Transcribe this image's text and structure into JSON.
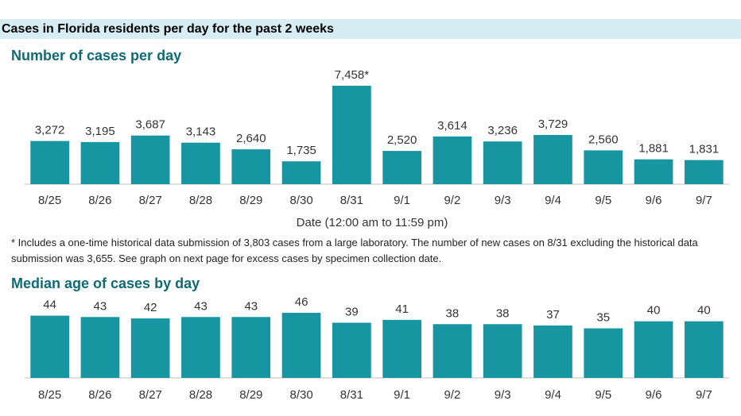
{
  "header": {
    "title": "Cases in Florida residents per day for the past 2 weeks"
  },
  "footnote": "* Includes a one-time historical data submission of 3,803 cases from a large laboratory. The number of new cases on 8/31 excluding the historical data submission was 3,655. See graph on next page for excess cases by specimen collection date.",
  "colors": {
    "bar": "#1795a0",
    "title": "#0e6a75",
    "header_bg": "#d6edf3"
  },
  "chart_data": [
    {
      "type": "bar",
      "title": "Number of cases per day",
      "xlabel": "Date (12:00 am to 11:59 pm)",
      "ylabel": "",
      "categories": [
        "8/25",
        "8/26",
        "8/27",
        "8/28",
        "8/29",
        "8/30",
        "8/31",
        "9/1",
        "9/2",
        "9/3",
        "9/4",
        "9/5",
        "9/6",
        "9/7"
      ],
      "values": [
        3272,
        3195,
        3687,
        3143,
        2640,
        1735,
        7458,
        2520,
        3614,
        3236,
        3729,
        2560,
        1881,
        1831
      ],
      "data_labels": [
        "3,272",
        "3,195",
        "3,687",
        "3,143",
        "2,640",
        "1,735",
        "7,458*",
        "2,520",
        "3,614",
        "3,236",
        "3,729",
        "2,560",
        "1,881",
        "1,831"
      ],
      "ylim": [
        0,
        7458
      ],
      "grid": false,
      "legend": "none"
    },
    {
      "type": "bar",
      "title": "Median age of cases by day",
      "xlabel": "",
      "ylabel": "",
      "categories": [
        "8/25",
        "8/26",
        "8/27",
        "8/28",
        "8/29",
        "8/30",
        "8/31",
        "9/1",
        "9/2",
        "9/3",
        "9/4",
        "9/5",
        "9/6",
        "9/7"
      ],
      "values": [
        44,
        43,
        42,
        43,
        43,
        46,
        39,
        41,
        38,
        38,
        37,
        35,
        40,
        40
      ],
      "data_labels": [
        "44",
        "43",
        "42",
        "43",
        "43",
        "46",
        "39",
        "41",
        "38",
        "38",
        "37",
        "35",
        "40",
        "40"
      ],
      "ylim": [
        0,
        46
      ],
      "grid": false,
      "legend": "none"
    }
  ]
}
